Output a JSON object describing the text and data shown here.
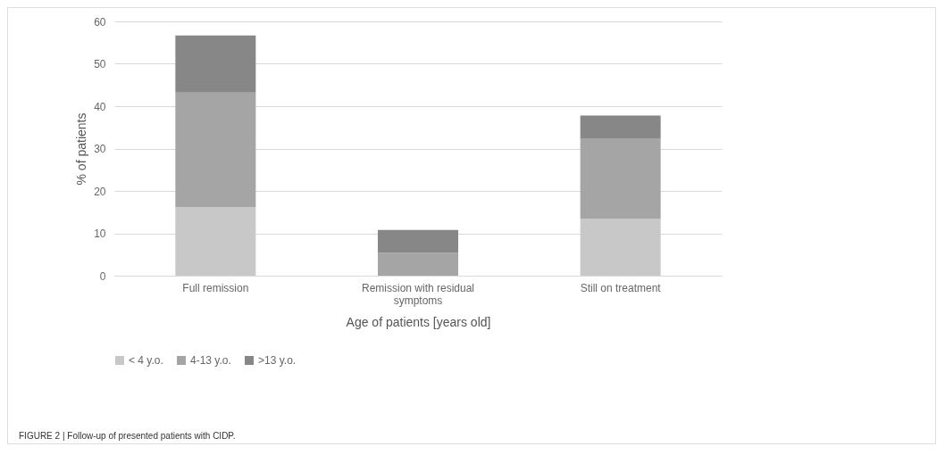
{
  "chart_data": {
    "type": "bar",
    "stacked": true,
    "xlabel": "Age of patients [years old]",
    "ylabel": "% of patients",
    "categories": [
      "Full remission",
      "Remission with residual symptoms",
      "Still on treatment"
    ],
    "series": [
      {
        "name": "< 4 y.o.",
        "color": "#c8c8c8",
        "values": [
          16.2,
          0,
          13.5
        ]
      },
      {
        "name": "4-13 y.o.",
        "color": "#a5a5a5",
        "values": [
          27,
          5.4,
          18.9
        ]
      },
      {
        "name": ">13 y.o.",
        "color": "#878787",
        "values": [
          13.5,
          5.4,
          5.4
        ]
      }
    ],
    "ylim": [
      0,
      60
    ],
    "yticks": [
      0,
      10,
      20,
      30,
      40,
      50,
      60
    ],
    "grid": "y",
    "legend": "bottom",
    "annotations": [
      "FIGURE 2 | Follow-up of presented patients with CIDP."
    ]
  }
}
